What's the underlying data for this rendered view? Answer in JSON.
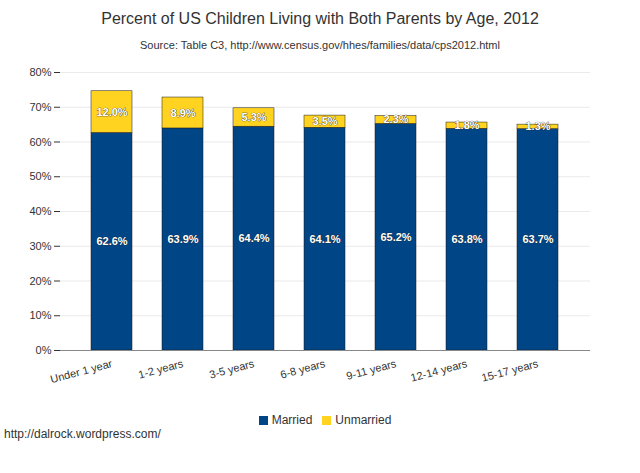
{
  "chart_data": {
    "type": "bar",
    "title": "Percent of US Children Living with Both Parents by Age, 2012",
    "subtitle": "Source: Table C3, http://www.census.gov/hhes/families/data/cps2012.html",
    "annotations": [
      "http://dalrock.wordpress.com/"
    ],
    "categories": [
      "Under 1 year",
      "1-2 years",
      "3-5 years",
      "6-8 years",
      "9-11 years",
      "12-14 years",
      "15-17 years"
    ],
    "series": [
      {
        "name": "Married",
        "color": "#004586",
        "values": [
          62.6,
          63.9,
          64.4,
          64.1,
          65.2,
          63.8,
          63.7
        ],
        "value_labels": [
          "62.6%",
          "63.9%",
          "64.4%",
          "64.1%",
          "65.2%",
          "63.8%",
          "63.7%"
        ]
      },
      {
        "name": "Unmarried",
        "color": "#ffd320",
        "values": [
          12.0,
          8.9,
          5.3,
          3.5,
          2.3,
          1.8,
          1.3
        ],
        "value_labels": [
          "12.0%",
          "8.9%",
          "5.3%",
          "3.5%",
          "2.3%",
          "1.8%",
          "1.3%"
        ]
      }
    ],
    "stacked": true,
    "data_labels": true,
    "ylim": [
      0,
      80
    ],
    "yticks": [
      {
        "value": 0,
        "label": "0%"
      },
      {
        "value": 10,
        "label": "10%"
      },
      {
        "value": 20,
        "label": "20%"
      },
      {
        "value": 30,
        "label": "30%"
      },
      {
        "value": 40,
        "label": "40%"
      },
      {
        "value": 50,
        "label": "50%"
      },
      {
        "value": 60,
        "label": "60%"
      },
      {
        "value": 70,
        "label": "70%"
      },
      {
        "value": 80,
        "label": "80%"
      }
    ],
    "grid": true,
    "legend": "bottom"
  }
}
